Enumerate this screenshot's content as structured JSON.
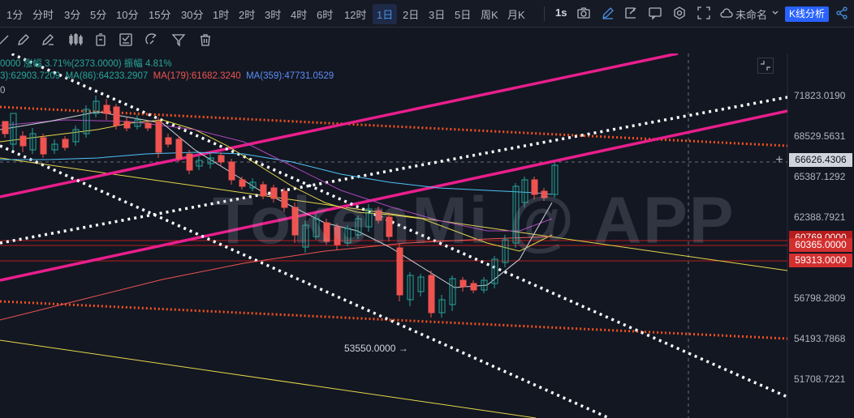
{
  "timeframes": [
    "1分",
    "分时",
    "3分",
    "5分",
    "10分",
    "15分",
    "30分",
    "1时",
    "2时",
    "3时",
    "4时",
    "6时",
    "12时",
    "1日",
    "2日",
    "3日",
    "5日",
    "周K",
    "月K"
  ],
  "active_timeframe": "1日",
  "interval_label": "1s",
  "layout_name": "未命名",
  "analysis_button": "K线分析",
  "legend": {
    "change": "0000  涨幅 3.71%(2373.0000)  振幅 4.81%",
    "ma_a": "3):62903.7209",
    "ma_b": "MA(86):64233.2907",
    "ma_c": "MA(179):61682.3240",
    "ma_d": "MA(359):47731.0529",
    "line3": "0"
  },
  "colors": {
    "ma_a": "#e6d84a",
    "ma_b": "#4fc3f7",
    "ma_c": "#ef5350",
    "ma_d": "#5c8df6",
    "up": "#26a69a",
    "down": "#ef5350",
    "trend_magenta": "#e91e8c",
    "trend_orange": "#f4511e"
  },
  "price_axis": [
    "71823.0190",
    "68529.5631",
    "65387.1292",
    "62388.7921",
    "56798.2809",
    "54193.7868",
    "51708.7221"
  ],
  "price_tags": {
    "current": "66626.4306",
    "tag_upper": "60365.0000",
    "tag_lower": "59313.0000",
    "tag_hidden": "60769.0000"
  },
  "low_annotation": "53550.0000",
  "watermark": "TokenMi @ APP",
  "icons": {
    "top": [
      "camera-icon",
      "pencil-icon",
      "crop-icon",
      "chat-icon",
      "settings-icon",
      "fullscreen-icon",
      "cloud-icon",
      "share-icon"
    ],
    "tools": [
      "ruler-icon",
      "brush-icon",
      "candles-icon",
      "delete-icon",
      "note-icon",
      "magnet-icon",
      "filter-icon",
      "trash-icon"
    ]
  }
}
